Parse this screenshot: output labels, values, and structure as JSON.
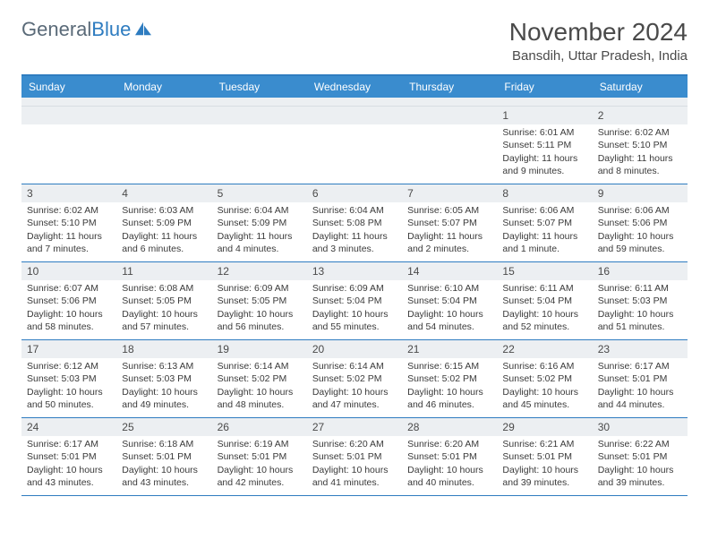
{
  "brand": {
    "part1": "General",
    "part2": "Blue"
  },
  "title": "November 2024",
  "location": "Bansdih, Uttar Pradesh, India",
  "colors": {
    "header_bar": "#3a8cce",
    "rule": "#2e7cc0",
    "daynum_bg": "#eceff2",
    "text": "#3a3a3a"
  },
  "weekdays": [
    "Sunday",
    "Monday",
    "Tuesday",
    "Wednesday",
    "Thursday",
    "Friday",
    "Saturday"
  ],
  "weeks": [
    [
      null,
      null,
      null,
      null,
      null,
      {
        "n": "1",
        "sr": "Sunrise: 6:01 AM",
        "ss": "Sunset: 5:11 PM",
        "d1": "Daylight: 11 hours",
        "d2": "and 9 minutes."
      },
      {
        "n": "2",
        "sr": "Sunrise: 6:02 AM",
        "ss": "Sunset: 5:10 PM",
        "d1": "Daylight: 11 hours",
        "d2": "and 8 minutes."
      }
    ],
    [
      {
        "n": "3",
        "sr": "Sunrise: 6:02 AM",
        "ss": "Sunset: 5:10 PM",
        "d1": "Daylight: 11 hours",
        "d2": "and 7 minutes."
      },
      {
        "n": "4",
        "sr": "Sunrise: 6:03 AM",
        "ss": "Sunset: 5:09 PM",
        "d1": "Daylight: 11 hours",
        "d2": "and 6 minutes."
      },
      {
        "n": "5",
        "sr": "Sunrise: 6:04 AM",
        "ss": "Sunset: 5:09 PM",
        "d1": "Daylight: 11 hours",
        "d2": "and 4 minutes."
      },
      {
        "n": "6",
        "sr": "Sunrise: 6:04 AM",
        "ss": "Sunset: 5:08 PM",
        "d1": "Daylight: 11 hours",
        "d2": "and 3 minutes."
      },
      {
        "n": "7",
        "sr": "Sunrise: 6:05 AM",
        "ss": "Sunset: 5:07 PM",
        "d1": "Daylight: 11 hours",
        "d2": "and 2 minutes."
      },
      {
        "n": "8",
        "sr": "Sunrise: 6:06 AM",
        "ss": "Sunset: 5:07 PM",
        "d1": "Daylight: 11 hours",
        "d2": "and 1 minute."
      },
      {
        "n": "9",
        "sr": "Sunrise: 6:06 AM",
        "ss": "Sunset: 5:06 PM",
        "d1": "Daylight: 10 hours",
        "d2": "and 59 minutes."
      }
    ],
    [
      {
        "n": "10",
        "sr": "Sunrise: 6:07 AM",
        "ss": "Sunset: 5:06 PM",
        "d1": "Daylight: 10 hours",
        "d2": "and 58 minutes."
      },
      {
        "n": "11",
        "sr": "Sunrise: 6:08 AM",
        "ss": "Sunset: 5:05 PM",
        "d1": "Daylight: 10 hours",
        "d2": "and 57 minutes."
      },
      {
        "n": "12",
        "sr": "Sunrise: 6:09 AM",
        "ss": "Sunset: 5:05 PM",
        "d1": "Daylight: 10 hours",
        "d2": "and 56 minutes."
      },
      {
        "n": "13",
        "sr": "Sunrise: 6:09 AM",
        "ss": "Sunset: 5:04 PM",
        "d1": "Daylight: 10 hours",
        "d2": "and 55 minutes."
      },
      {
        "n": "14",
        "sr": "Sunrise: 6:10 AM",
        "ss": "Sunset: 5:04 PM",
        "d1": "Daylight: 10 hours",
        "d2": "and 54 minutes."
      },
      {
        "n": "15",
        "sr": "Sunrise: 6:11 AM",
        "ss": "Sunset: 5:04 PM",
        "d1": "Daylight: 10 hours",
        "d2": "and 52 minutes."
      },
      {
        "n": "16",
        "sr": "Sunrise: 6:11 AM",
        "ss": "Sunset: 5:03 PM",
        "d1": "Daylight: 10 hours",
        "d2": "and 51 minutes."
      }
    ],
    [
      {
        "n": "17",
        "sr": "Sunrise: 6:12 AM",
        "ss": "Sunset: 5:03 PM",
        "d1": "Daylight: 10 hours",
        "d2": "and 50 minutes."
      },
      {
        "n": "18",
        "sr": "Sunrise: 6:13 AM",
        "ss": "Sunset: 5:03 PM",
        "d1": "Daylight: 10 hours",
        "d2": "and 49 minutes."
      },
      {
        "n": "19",
        "sr": "Sunrise: 6:14 AM",
        "ss": "Sunset: 5:02 PM",
        "d1": "Daylight: 10 hours",
        "d2": "and 48 minutes."
      },
      {
        "n": "20",
        "sr": "Sunrise: 6:14 AM",
        "ss": "Sunset: 5:02 PM",
        "d1": "Daylight: 10 hours",
        "d2": "and 47 minutes."
      },
      {
        "n": "21",
        "sr": "Sunrise: 6:15 AM",
        "ss": "Sunset: 5:02 PM",
        "d1": "Daylight: 10 hours",
        "d2": "and 46 minutes."
      },
      {
        "n": "22",
        "sr": "Sunrise: 6:16 AM",
        "ss": "Sunset: 5:02 PM",
        "d1": "Daylight: 10 hours",
        "d2": "and 45 minutes."
      },
      {
        "n": "23",
        "sr": "Sunrise: 6:17 AM",
        "ss": "Sunset: 5:01 PM",
        "d1": "Daylight: 10 hours",
        "d2": "and 44 minutes."
      }
    ],
    [
      {
        "n": "24",
        "sr": "Sunrise: 6:17 AM",
        "ss": "Sunset: 5:01 PM",
        "d1": "Daylight: 10 hours",
        "d2": "and 43 minutes."
      },
      {
        "n": "25",
        "sr": "Sunrise: 6:18 AM",
        "ss": "Sunset: 5:01 PM",
        "d1": "Daylight: 10 hours",
        "d2": "and 43 minutes."
      },
      {
        "n": "26",
        "sr": "Sunrise: 6:19 AM",
        "ss": "Sunset: 5:01 PM",
        "d1": "Daylight: 10 hours",
        "d2": "and 42 minutes."
      },
      {
        "n": "27",
        "sr": "Sunrise: 6:20 AM",
        "ss": "Sunset: 5:01 PM",
        "d1": "Daylight: 10 hours",
        "d2": "and 41 minutes."
      },
      {
        "n": "28",
        "sr": "Sunrise: 6:20 AM",
        "ss": "Sunset: 5:01 PM",
        "d1": "Daylight: 10 hours",
        "d2": "and 40 minutes."
      },
      {
        "n": "29",
        "sr": "Sunrise: 6:21 AM",
        "ss": "Sunset: 5:01 PM",
        "d1": "Daylight: 10 hours",
        "d2": "and 39 minutes."
      },
      {
        "n": "30",
        "sr": "Sunrise: 6:22 AM",
        "ss": "Sunset: 5:01 PM",
        "d1": "Daylight: 10 hours",
        "d2": "and 39 minutes."
      }
    ]
  ]
}
